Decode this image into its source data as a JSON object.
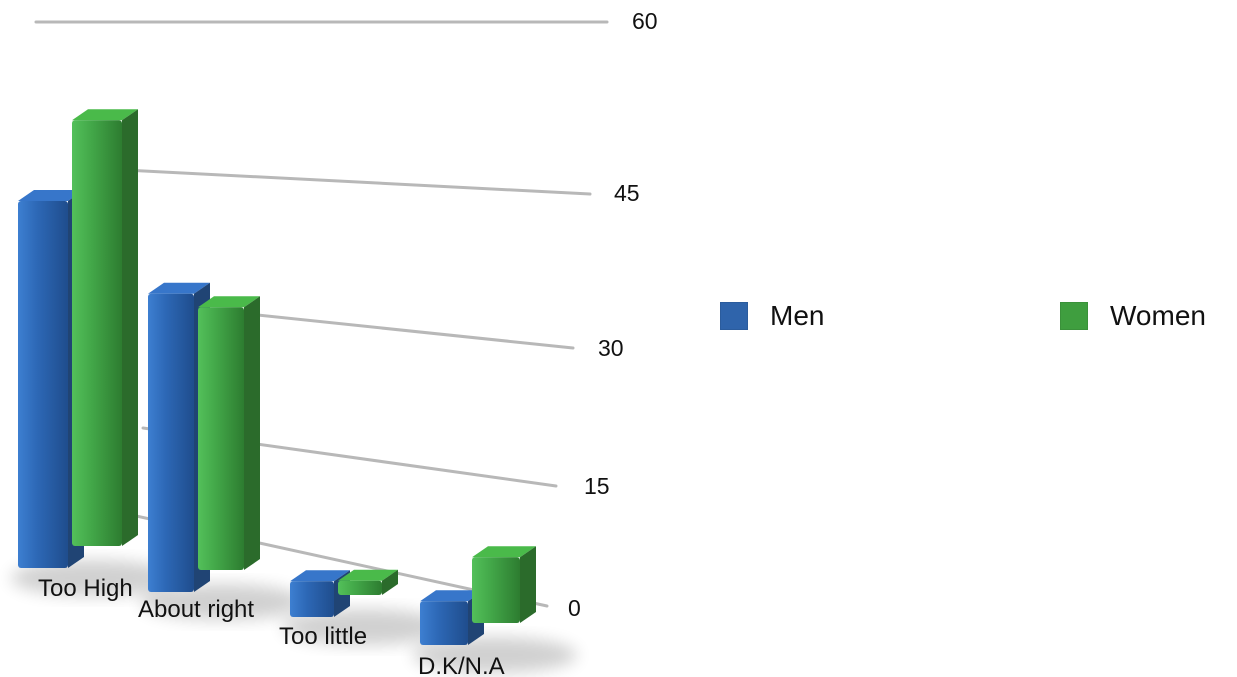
{
  "chart_data": {
    "type": "bar",
    "categories": [
      "Too High",
      "About right",
      "Too little",
      "D.K/N.A"
    ],
    "series": [
      {
        "name": "Men",
        "values": [
          50,
          42,
          5,
          6
        ],
        "color": "#2f64ab"
      },
      {
        "name": "Women",
        "values": [
          58,
          37,
          2,
          9
        ],
        "color": "#3f9e3f"
      }
    ],
    "yticks": [
      "0",
      "15",
      "30",
      "45",
      "60"
    ],
    "ylim": [
      0,
      60
    ],
    "grid": true,
    "legend": "right",
    "title": "",
    "xlabel": "",
    "ylabel": ""
  }
}
